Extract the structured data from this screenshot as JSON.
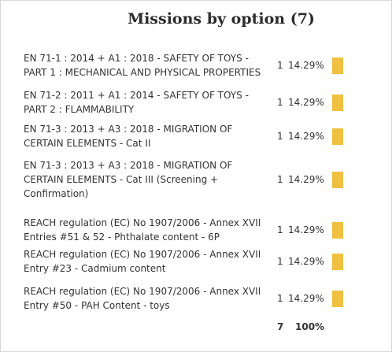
{
  "title": "Missions by option (7)",
  "rows": [
    {
      "label": "EN 71-1 : 2014 + A1 : 2018 - SAFETY OF TOYS - PART 1 : MECHANICAL AND PHYSICAL PROPERTIES",
      "count": "1",
      "percent": "14.29%",
      "share": 0.1429
    },
    {
      "label": "EN 71-2 : 2011 + A1 : 2014 - SAFETY OF TOYS - PART 2 : FLAMMABILITY",
      "count": "1",
      "percent": "14.29%",
      "share": 0.1429
    },
    {
      "label": "EN 71-3 : 2013 + A3 : 2018 - MIGRATION OF CERTAIN ELEMENTS - Cat II",
      "count": "1",
      "percent": "14.29%",
      "share": 0.1429
    },
    {
      "label": "EN 71-3 : 2013 + A3 : 2018 - MIGRATION OF CERTAIN ELEMENTS - Cat III (Screening + Confirmation)",
      "count": "1",
      "percent": "14.29%",
      "share": 0.1429
    },
    {
      "label": "REACH regulation (EC) No 1907/2006 - Annex XVII Entries #51 & 52 - Phthalate content - 6P",
      "count": "1",
      "percent": "14.29%",
      "share": 0.1429
    },
    {
      "label": "REACH regulation (EC) No 1907/2006 - Annex XVII Entry #23 - Cadmium content",
      "count": "1",
      "percent": "14.29%",
      "share": 0.1429
    },
    {
      "label": "REACH regulation (EC) No 1907/2006 - Annex XVII Entry #50 - PAH Content - toys",
      "count": "1",
      "percent": "14.29%",
      "share": 0.1429
    }
  ],
  "totals": {
    "count": "7",
    "percent": "100%"
  },
  "colors": {
    "bar": "#f0c040"
  }
}
